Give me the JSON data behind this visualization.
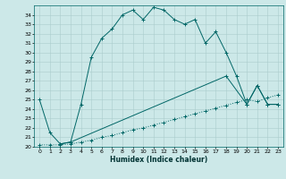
{
  "title": "",
  "xlabel": "Humidex (Indice chaleur)",
  "bg_color": "#cce8e8",
  "grid_color": "#aacccc",
  "line_color": "#006666",
  "xlim": [
    -0.5,
    23.5
  ],
  "ylim": [
    20,
    35
  ],
  "xticks": [
    0,
    1,
    2,
    3,
    4,
    5,
    6,
    7,
    8,
    9,
    10,
    11,
    12,
    13,
    14,
    15,
    16,
    17,
    18,
    19,
    20,
    21,
    22,
    23
  ],
  "yticks": [
    20,
    21,
    22,
    23,
    24,
    25,
    26,
    27,
    28,
    29,
    30,
    31,
    32,
    33,
    34
  ],
  "curve1_x": [
    0,
    1,
    2,
    3,
    4,
    5,
    6,
    7,
    8,
    9,
    10,
    11,
    12,
    13,
    14,
    15,
    16,
    17,
    18,
    19,
    20,
    21,
    22,
    23
  ],
  "curve1_y": [
    25.0,
    21.5,
    20.3,
    20.5,
    24.5,
    29.5,
    31.5,
    32.5,
    34.0,
    34.5,
    33.5,
    34.8,
    34.5,
    33.5,
    33.0,
    33.5,
    31.0,
    32.2,
    30.0,
    27.5,
    24.5,
    26.5,
    24.5,
    24.5
  ],
  "curve2_x": [
    0,
    1,
    2,
    3,
    4,
    5,
    6,
    7,
    8,
    9,
    10,
    11,
    12,
    13,
    14,
    15,
    16,
    17,
    18,
    19,
    20,
    21,
    22,
    23
  ],
  "curve2_y": [
    20.2,
    20.2,
    20.2,
    20.3,
    20.5,
    20.7,
    21.0,
    21.2,
    21.5,
    21.8,
    22.0,
    22.3,
    22.6,
    22.9,
    23.2,
    23.5,
    23.8,
    24.1,
    24.4,
    24.7,
    25.0,
    24.8,
    25.2,
    25.5
  ],
  "curve3_x": [
    2,
    3,
    18,
    20,
    21,
    22,
    23
  ],
  "curve3_y": [
    20.3,
    20.5,
    27.5,
    24.5,
    26.5,
    24.5,
    24.5
  ],
  "xlabel_fontsize": 5.5,
  "tick_fontsize": 4.5,
  "lw": 0.7,
  "marker_size": 2.5,
  "marker_ew": 0.7
}
